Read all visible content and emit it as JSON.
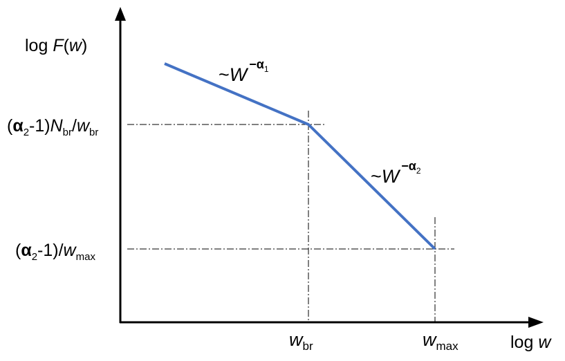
{
  "axes": {
    "y_label": {
      "prefix": "log ",
      "var": "F",
      "open": "(",
      "arg": "w",
      "close": ")"
    },
    "x_label": {
      "prefix": "log ",
      "var": "w"
    }
  },
  "y_ticks": {
    "upper": {
      "open": "(",
      "alpha": "α",
      "alpha_sub": "2",
      "minus_one": "-1)",
      "n": "N",
      "n_sub": "br",
      "slash": "/",
      "w": "w",
      "w_sub": "br"
    },
    "lower": {
      "open": "(",
      "alpha": "α",
      "alpha_sub": "2",
      "minus_one": "-1)/",
      "w": "w",
      "w_sub": "max"
    }
  },
  "x_ticks": {
    "break": {
      "w": "w",
      "sub": "br"
    },
    "max": {
      "w": "w",
      "sub": "max"
    }
  },
  "annotations": {
    "slope1": {
      "tilde": "~",
      "w": "W",
      "exp_sign": "−",
      "alpha": "α",
      "sub": "1"
    },
    "slope2": {
      "tilde": "~",
      "w": "W",
      "exp_sign": "−",
      "alpha": "α",
      "sub": "2"
    }
  },
  "colors": {
    "curve": "#4472C4",
    "axes": "#000000",
    "guides": "#000000"
  }
}
